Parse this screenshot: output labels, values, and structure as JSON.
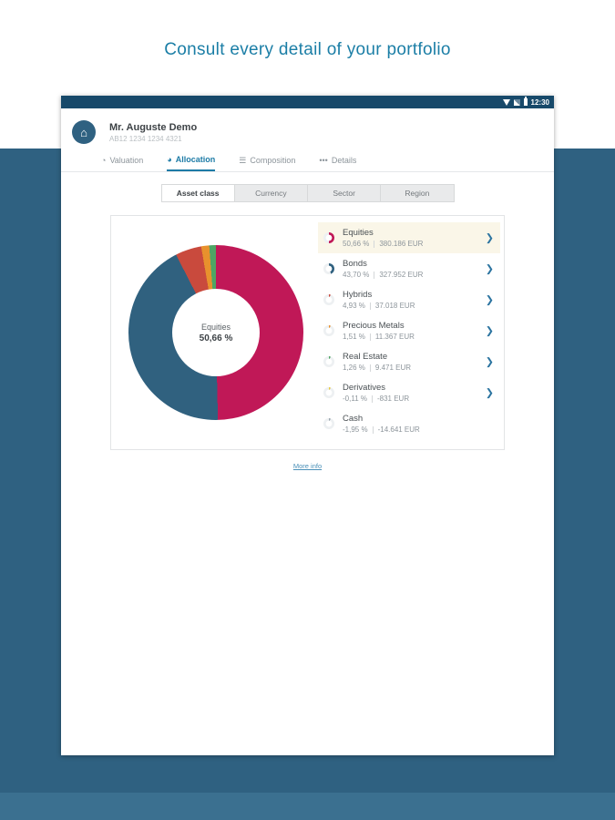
{
  "page": {
    "title": "Consult every detail of your portfolio"
  },
  "statusbar": {
    "time": "12:30"
  },
  "app_header": {
    "name": "Mr. Auguste Demo",
    "account": "AB12 1234 1234 4321",
    "home_icon": "⌂"
  },
  "tabs": [
    {
      "label": "Valuation",
      "icon": "◔",
      "active": false
    },
    {
      "label": "Allocation",
      "icon": "◕",
      "active": true
    },
    {
      "label": "Composition",
      "icon": "☰",
      "active": false
    },
    {
      "label": "Details",
      "icon": "•••",
      "active": false
    }
  ],
  "segments": [
    {
      "label": "Asset class",
      "active": true
    },
    {
      "label": "Currency",
      "active": false
    },
    {
      "label": "Sector",
      "active": false
    },
    {
      "label": "Region",
      "active": false
    }
  ],
  "icons": {
    "chevron": "❯"
  },
  "chart_data": {
    "type": "pie",
    "title": "Asset class allocation",
    "center_label": "Equities",
    "center_value": "50,66 %",
    "legend_position": "right",
    "series": [
      {
        "name": "Equities",
        "pct": "50,66 %",
        "amount": "380.186 EUR",
        "value": 50.66,
        "color": "#c01857",
        "chevron": true
      },
      {
        "name": "Bonds",
        "pct": "43,70 %",
        "amount": "327.952 EUR",
        "value": 43.7,
        "color": "#30617f",
        "chevron": true
      },
      {
        "name": "Hybrids",
        "pct": "4,93 %",
        "amount": "37.018 EUR",
        "value": 4.93,
        "color": "#c94a3d",
        "chevron": true
      },
      {
        "name": "Precious Metals",
        "pct": "1,51 %",
        "amount": "11.367 EUR",
        "value": 1.51,
        "color": "#e8912d",
        "chevron": true
      },
      {
        "name": "Real Estate",
        "pct": "1,26 %",
        "amount": "9.471 EUR",
        "value": 1.26,
        "color": "#4ea564",
        "chevron": true
      },
      {
        "name": "Derivatives",
        "pct": "-0,11 %",
        "amount": "-831 EUR",
        "value": -0.11,
        "color": "#e8c93e",
        "chevron": true
      },
      {
        "name": "Cash",
        "pct": "-1,95 %",
        "amount": "-14.641 EUR",
        "value": -1.95,
        "color": "#9aa5ad",
        "chevron": false
      }
    ]
  },
  "footer": {
    "more_info": "More info"
  }
}
